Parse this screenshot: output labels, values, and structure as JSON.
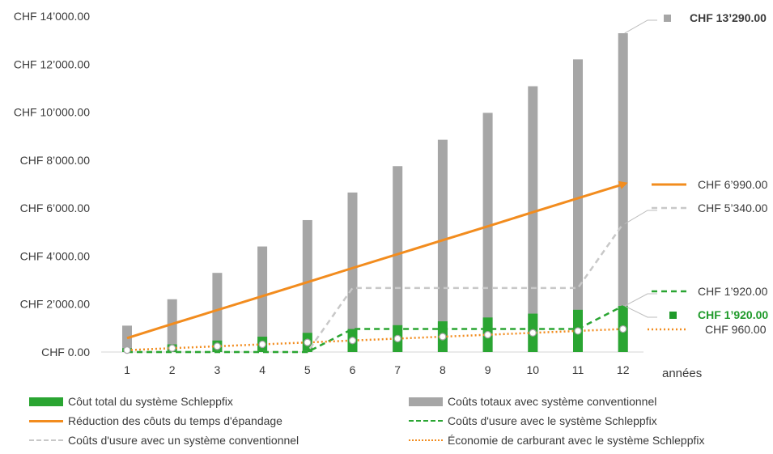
{
  "chart_data": {
    "type": "bar",
    "categories": [
      "1",
      "2",
      "3",
      "4",
      "5",
      "6",
      "7",
      "8",
      "9",
      "10",
      "11",
      "12"
    ],
    "x_axis_suffix": "années",
    "ylim": [
      0,
      14000
    ],
    "y_ticks": [
      {
        "value": 0,
        "label": "CHF 0.00"
      },
      {
        "value": 2000,
        "label": "CHF 2’000.00"
      },
      {
        "value": 4000,
        "label": "CHF 4’000.00"
      },
      {
        "value": 6000,
        "label": "CHF 6’000.00"
      },
      {
        "value": 8000,
        "label": "CHF 8’000.00"
      },
      {
        "value": 10000,
        "label": "CHF 10’000.00"
      },
      {
        "value": 12000,
        "label": "CHF 12’000.00"
      },
      {
        "value": 14000,
        "label": "CHF 14’000.00"
      }
    ],
    "grid": false,
    "legend_position": "bottom",
    "series": [
      {
        "name": "Coûts totaux avec système conventionnel",
        "kind": "bar",
        "color": "#a6a6a6",
        "values": [
          1100,
          2200,
          3300,
          4400,
          5500,
          6650,
          7750,
          8850,
          9970,
          11080,
          12200,
          13290
        ]
      },
      {
        "name": "Côut total du système Schleppfix",
        "kind": "bar",
        "color": "#2aa532",
        "values": [
          160,
          320,
          480,
          640,
          800,
          960,
          1120,
          1280,
          1440,
          1600,
          1760,
          1920
        ]
      },
      {
        "name": "Réduction des côuts du temps d'épandage",
        "kind": "line",
        "style": "solid",
        "color": "#f28c1e",
        "values": [
          580,
          1170,
          1750,
          2330,
          2910,
          3500,
          4080,
          4660,
          5240,
          5830,
          6410,
          6990
        ]
      },
      {
        "name": "Coûts d'usure avec le système Schleppfix",
        "kind": "line",
        "style": "dashed",
        "color": "#2aa532",
        "values": [
          0,
          0,
          0,
          0,
          0,
          960,
          960,
          960,
          960,
          960,
          960,
          1920
        ]
      },
      {
        "name": "Coûts d'usure avec un système conventionnel",
        "kind": "line",
        "style": "dashed",
        "color": "#c8c8c8",
        "values": [
          0,
          0,
          0,
          0,
          0,
          2670,
          2670,
          2670,
          2670,
          2670,
          2670,
          5340
        ]
      },
      {
        "name": "Économie de carburant avec le système Schleppfix",
        "kind": "line",
        "style": "dotted",
        "color": "#f28c1e",
        "values": [
          80,
          160,
          240,
          320,
          400,
          480,
          560,
          640,
          720,
          800,
          880,
          960
        ]
      }
    ],
    "end_labels": [
      {
        "text": "CHF 13’290.00",
        "color": "#3a3a3a",
        "bold": true,
        "value": 13290,
        "series": 0
      },
      {
        "text": "CHF 6’990.00",
        "color": "#3a3a3a",
        "bold": false,
        "value": 6990,
        "series": 2
      },
      {
        "text": "CHF 5’340.00",
        "color": "#3a3a3a",
        "bold": false,
        "value": 5340,
        "series": 4
      },
      {
        "text": "CHF 1’920.00",
        "color": "#3a3a3a",
        "bold": false,
        "value": 1920,
        "series": 3
      },
      {
        "text": "CHF 1’920.00",
        "color": "#1f9a2a",
        "bold": true,
        "value": 1920,
        "series": 1
      },
      {
        "text": "CHF 960.00",
        "color": "#3a3a3a",
        "bold": false,
        "value": 960,
        "series": 5
      }
    ]
  },
  "legend": [
    {
      "label": "Côut total du système Schleppfix",
      "swatch": "box",
      "color": "#2aa532"
    },
    {
      "label": "Coûts totaux avec système conventionnel",
      "swatch": "box",
      "color": "#a6a6a6"
    },
    {
      "label": "Réduction des côuts du temps d'épandage",
      "swatch": "solid",
      "color": "#f28c1e"
    },
    {
      "label": "Coûts d'usure avec le système Schleppfix",
      "swatch": "dashed",
      "color": "#2aa532"
    },
    {
      "label": "Coûts d'usure avec un système conventionnel",
      "swatch": "dashed",
      "color": "#c8c8c8"
    },
    {
      "label": "Économie de carburant avec le système Schleppfix",
      "swatch": "dotted",
      "color": "#f28c1e"
    }
  ]
}
